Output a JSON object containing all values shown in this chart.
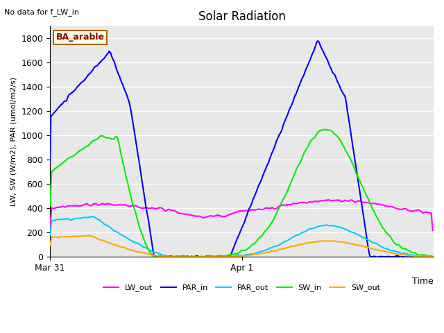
{
  "title": "Solar Radiation",
  "top_left_text": "No data for f_LW_in",
  "legend_label_text": "BA_arable",
  "ylabel": "LW, SW (W/m2), PAR (umol/m2/s)",
  "xlabel": "Time",
  "xtick_labels": [
    "Mar 31",
    "Apr 1"
  ],
  "ytick_values": [
    0,
    200,
    400,
    600,
    800,
    1000,
    1200,
    1400,
    1600,
    1800
  ],
  "ylim": [
    0,
    1900
  ],
  "xlim": [
    0,
    480
  ],
  "mar31_x": 0,
  "apr1_x": 240,
  "colors": {
    "LW_out": "#ff00ff",
    "PAR_in": "#0000ff",
    "PAR_out": "#00ccff",
    "SW_in": "#00ee00",
    "SW_out": "#ffaa00"
  },
  "plot_bg_color": "#e8e8e8",
  "grid_color": "#ffffff",
  "linewidth": 1.5
}
